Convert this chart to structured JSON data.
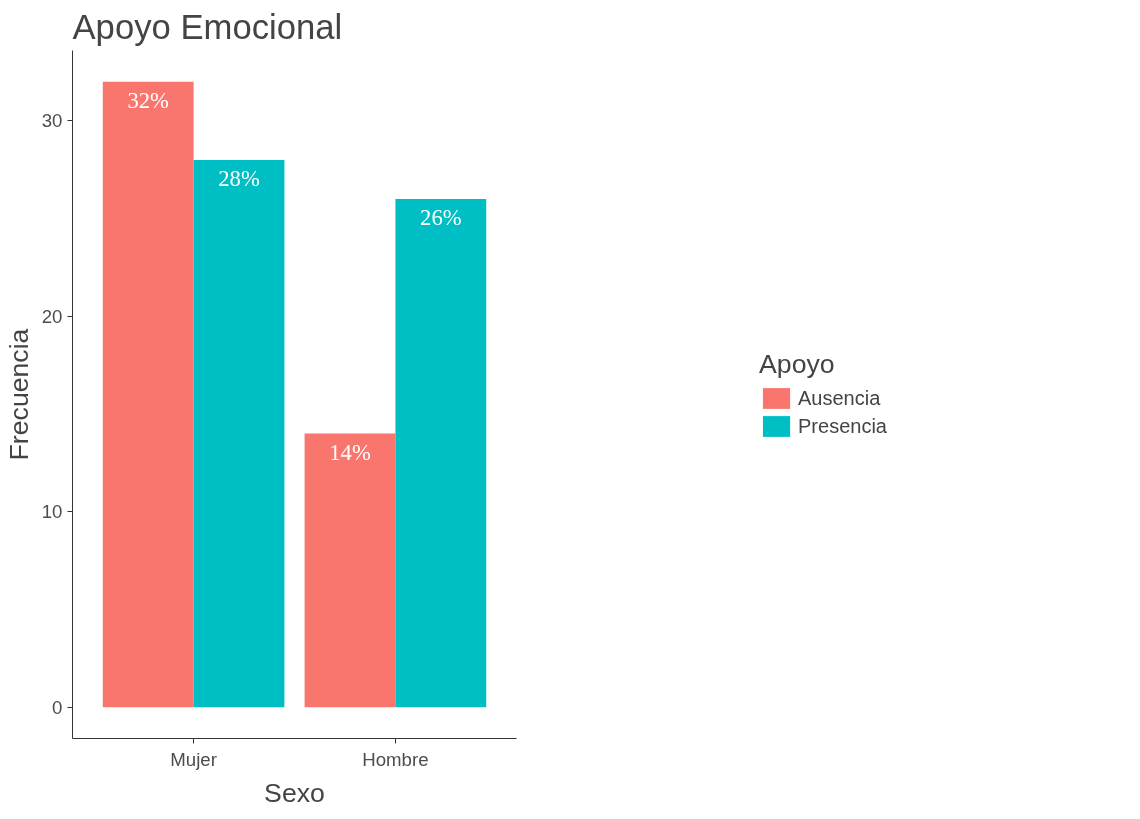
{
  "chart_data": {
    "type": "bar",
    "title": "Apoyo Emocional",
    "xlabel": "Sexo",
    "ylabel": "Frecuencia",
    "legend_title": "Apoyo",
    "categories": [
      "Mujer",
      "Hombre"
    ],
    "series": [
      {
        "name": "Ausencia",
        "color": "#f8766d",
        "values": [
          32,
          14
        ],
        "value_labels": [
          "32%",
          "14%"
        ]
      },
      {
        "name": "Presencia",
        "color": "#00bfc4",
        "values": [
          28,
          26
        ],
        "value_labels": [
          "28%",
          "26%"
        ]
      }
    ],
    "ylim": [
      -1.6,
      33.6
    ],
    "yticks": [
      0,
      10,
      20,
      30
    ],
    "grid": false,
    "legend": "right"
  }
}
